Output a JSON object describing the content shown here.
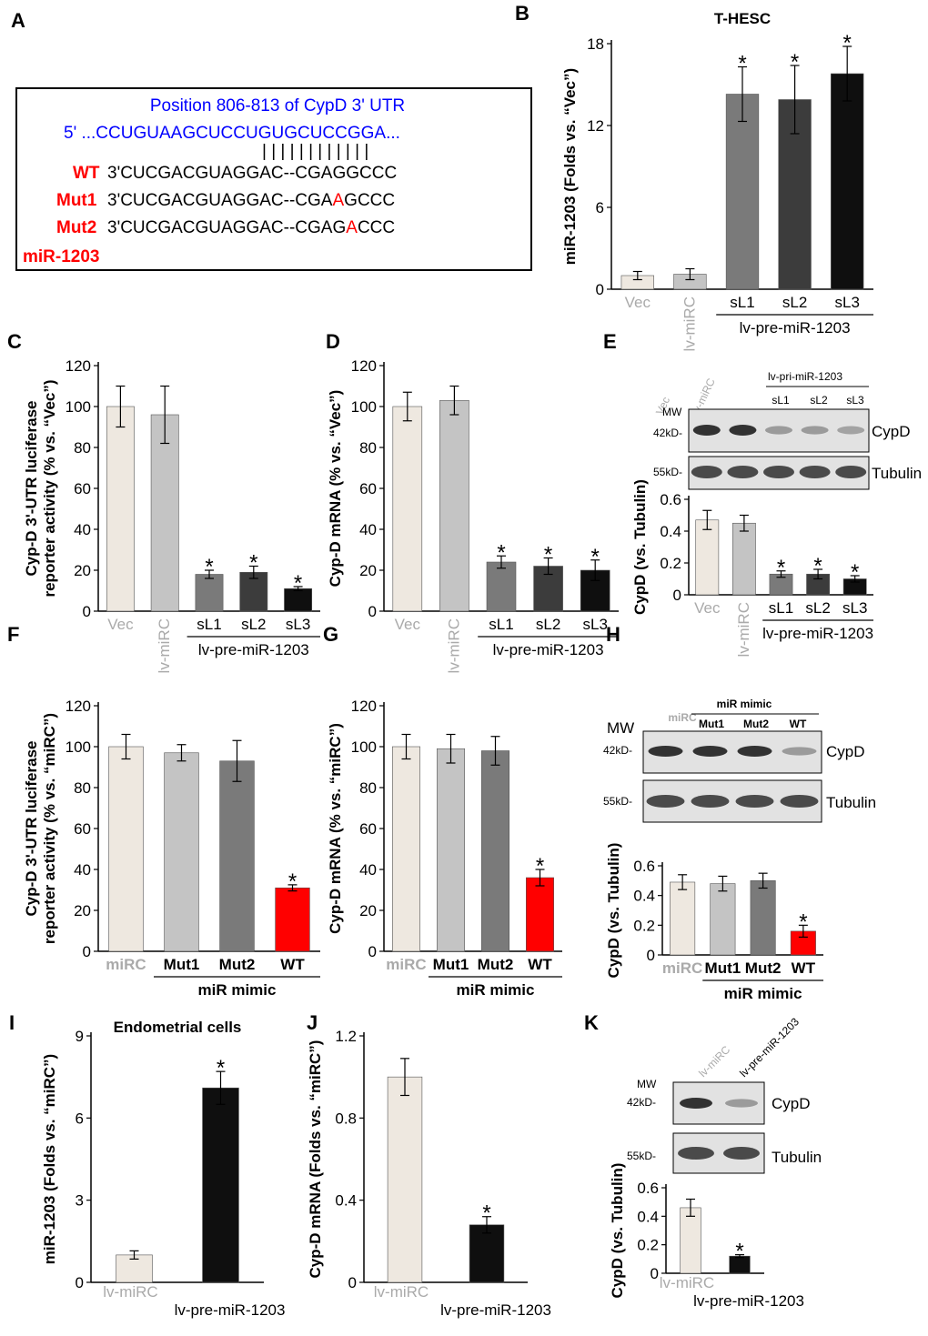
{
  "panel_letters": [
    "A",
    "B",
    "C",
    "D",
    "E",
    "F",
    "G",
    "H",
    "I",
    "J",
    "K"
  ],
  "panel_A": {
    "line1": "Position 806-813 of CypD 3' UTR",
    "line2": "5' ...CCUGUAAGCUCCUGUGCUCCGGA...",
    "bars": "|  |  |  |  |      |  |  |  |  |  |  |",
    "wt_label": "WT",
    "wt_seq": "3'CUCGACGUAGGAC--CGAGGCCC",
    "mut1_label": "Mut1",
    "mut1_pre": "3'CUCGACGUAGGAC--CGA",
    "mut1_mut": "A",
    "mut1_post": "GCCC",
    "mut2_label": "Mut2",
    "mut2_pre": "3'CUCGACGUAGGAC--CGAG",
    "mut2_mut": "A",
    "mut2_post": "CCC",
    "mir_label": "miR-1203"
  },
  "blots": {
    "E": {
      "mw": "MW",
      "kd1": "42kD-",
      "kd2": "55kD-",
      "band1": "CypD",
      "band2": "Tubulin",
      "lanes": [
        "Vec",
        "lv-miRC",
        "sL1",
        "sL2",
        "sL3"
      ],
      "group": "lv-pri-miR-1203",
      "intensity": [
        1.0,
        1.0,
        0.3,
        0.3,
        0.25
      ]
    },
    "H": {
      "mw": "MW",
      "kd1": "42kD-",
      "kd2": "55kD-",
      "band1": "CypD",
      "band2": "Tubulin",
      "lanes": [
        "miRC",
        "Mut1",
        "Mut2",
        "WT"
      ],
      "group": "miR mimic",
      "intensity": [
        1.0,
        1.0,
        1.0,
        0.3
      ]
    },
    "K": {
      "mw": "MW",
      "kd1": "42kD-",
      "kd2": "55kD-",
      "band1": "CypD",
      "band2": "Tubulin",
      "lanes": [
        "lv-miRC",
        "lv-pre-miR-1203"
      ],
      "intensity": [
        1.0,
        0.3
      ]
    }
  },
  "colors": {
    "ivory": "#eee8e0",
    "lightgray": "#c4c4c4",
    "gray": "#7a7a7a",
    "darkgray": "#3c3c3c",
    "black": "#0f0f0f",
    "red": "#ff0000",
    "blue": "#0000ff",
    "grey_label": "#aaaaaa"
  },
  "chart_data": [
    {
      "id": "B",
      "type": "bar",
      "title": "T-HESC",
      "ylabel": "miR-1203 (Folds vs. “Vec”)",
      "categories": [
        "Vec",
        "lv-miRC",
        "sL1",
        "sL2",
        "sL3"
      ],
      "group_label": "lv-pre-miR-1203",
      "values": [
        1.0,
        1.1,
        14.3,
        13.9,
        15.8
      ],
      "errors": [
        0.3,
        0.4,
        2.0,
        2.5,
        2.0
      ],
      "significant": [
        false,
        false,
        true,
        true,
        true
      ],
      "yticks": [
        "0",
        "6",
        "12",
        "18"
      ],
      "ylim": [
        0,
        18
      ]
    },
    {
      "id": "C",
      "type": "bar",
      "title": "",
      "ylabel": "Cyp-D 3'-UTR luciferase reporter activity (% vs. “Vec”)",
      "categories": [
        "Vec",
        "lv-miRC",
        "sL1",
        "sL2",
        "sL3"
      ],
      "group_label": "lv-pre-miR-1203",
      "values": [
        100,
        96,
        18,
        19,
        11
      ],
      "errors": [
        10,
        14,
        2,
        3,
        1
      ],
      "significant": [
        false,
        false,
        true,
        true,
        true
      ],
      "yticks": [
        "0",
        "20",
        "40",
        "60",
        "80",
        "100",
        "120"
      ],
      "ylim": [
        0,
        120
      ]
    },
    {
      "id": "D",
      "type": "bar",
      "title": "",
      "ylabel": "Cyp-D mRNA (% vs. “Vec”)",
      "categories": [
        "Vec",
        "lv-miRC",
        "sL1",
        "sL2",
        "sL3"
      ],
      "group_label": "lv-pre-miR-1203",
      "values": [
        100,
        103,
        24,
        22,
        20
      ],
      "errors": [
        7,
        7,
        3,
        4,
        5
      ],
      "significant": [
        false,
        false,
        true,
        true,
        true
      ],
      "yticks": [
        "0",
        "20",
        "40",
        "60",
        "80",
        "100",
        "120"
      ],
      "ylim": [
        0,
        120
      ]
    },
    {
      "id": "E",
      "type": "bar",
      "title": "",
      "ylabel": "CypD (vs. Tubulin)",
      "categories": [
        "Vec",
        "lv-miRC",
        "sL1",
        "sL2",
        "sL3"
      ],
      "group_label": "lv-pre-miR-1203",
      "values": [
        0.47,
        0.45,
        0.13,
        0.13,
        0.1
      ],
      "errors": [
        0.06,
        0.05,
        0.02,
        0.03,
        0.02
      ],
      "significant": [
        false,
        false,
        true,
        true,
        true
      ],
      "yticks": [
        "0",
        "0.2",
        "0.4",
        "0.6"
      ],
      "ylim": [
        0,
        0.6
      ]
    },
    {
      "id": "F",
      "type": "bar",
      "title": "",
      "ylabel": "Cyp-D 3'-UTR luciferase reporter activity (% vs. “miRC”)",
      "categories": [
        "miRC",
        "Mut1",
        "Mut2",
        "WT"
      ],
      "group_label": "miR mimic",
      "values": [
        100,
        97,
        93,
        31
      ],
      "errors": [
        6,
        4,
        10,
        1.5
      ],
      "significant": [
        false,
        false,
        false,
        true
      ],
      "yticks": [
        "0",
        "20",
        "40",
        "60",
        "80",
        "100",
        "120"
      ],
      "ylim": [
        0,
        120
      ]
    },
    {
      "id": "G",
      "type": "bar",
      "title": "",
      "ylabel": "Cyp-D mRNA (% vs. “miRC”)",
      "categories": [
        "miRC",
        "Mut1",
        "Mut2",
        "WT"
      ],
      "group_label": "miR mimic",
      "values": [
        100,
        99,
        98,
        36
      ],
      "errors": [
        6,
        7,
        7,
        4
      ],
      "significant": [
        false,
        false,
        false,
        true
      ],
      "yticks": [
        "0",
        "20",
        "40",
        "60",
        "80",
        "100",
        "120"
      ],
      "ylim": [
        0,
        120
      ]
    },
    {
      "id": "H",
      "type": "bar",
      "title": "",
      "ylabel": "CypD (vs. Tubulin)",
      "categories": [
        "miRC",
        "Mut1",
        "Mut2",
        "WT"
      ],
      "group_label": "miR mimic",
      "values": [
        0.49,
        0.48,
        0.5,
        0.16
      ],
      "errors": [
        0.05,
        0.05,
        0.05,
        0.04
      ],
      "significant": [
        false,
        false,
        false,
        true
      ],
      "yticks": [
        "0",
        "0.2",
        "0.4",
        "0.6"
      ],
      "ylim": [
        0,
        0.6
      ]
    },
    {
      "id": "I",
      "type": "bar",
      "title": "Endometrial cells",
      "ylabel": "miR-1203 (Folds vs. “miRC”)",
      "categories": [
        "lv-miRC",
        "lv-pre-miR-1203"
      ],
      "group_label": "",
      "values": [
        1.0,
        7.1
      ],
      "errors": [
        0.15,
        0.6
      ],
      "significant": [
        false,
        true
      ],
      "yticks": [
        "0",
        "3",
        "6",
        "9"
      ],
      "ylim": [
        0,
        9
      ]
    },
    {
      "id": "J",
      "type": "bar",
      "title": "",
      "ylabel": "Cyp-D mRNA (Folds vs. “miRC”)",
      "categories": [
        "lv-miRC",
        "lv-pre-miR-1203"
      ],
      "group_label": "",
      "values": [
        1.0,
        0.28
      ],
      "errors": [
        0.09,
        0.04
      ],
      "significant": [
        false,
        true
      ],
      "yticks": [
        "0",
        "0.4",
        "0.8",
        "1.2"
      ],
      "ylim": [
        0,
        1.2
      ]
    },
    {
      "id": "K",
      "type": "bar",
      "title": "",
      "ylabel": "CypD (vs. Tubulin)",
      "categories": [
        "lv-miRC",
        "lv-pre-miR-1203"
      ],
      "group_label": "",
      "values": [
        0.46,
        0.12
      ],
      "errors": [
        0.06,
        0.01
      ],
      "significant": [
        false,
        true
      ],
      "yticks": [
        "0",
        "0.2",
        "0.4",
        "0.6"
      ],
      "ylim": [
        0,
        0.6
      ]
    }
  ]
}
